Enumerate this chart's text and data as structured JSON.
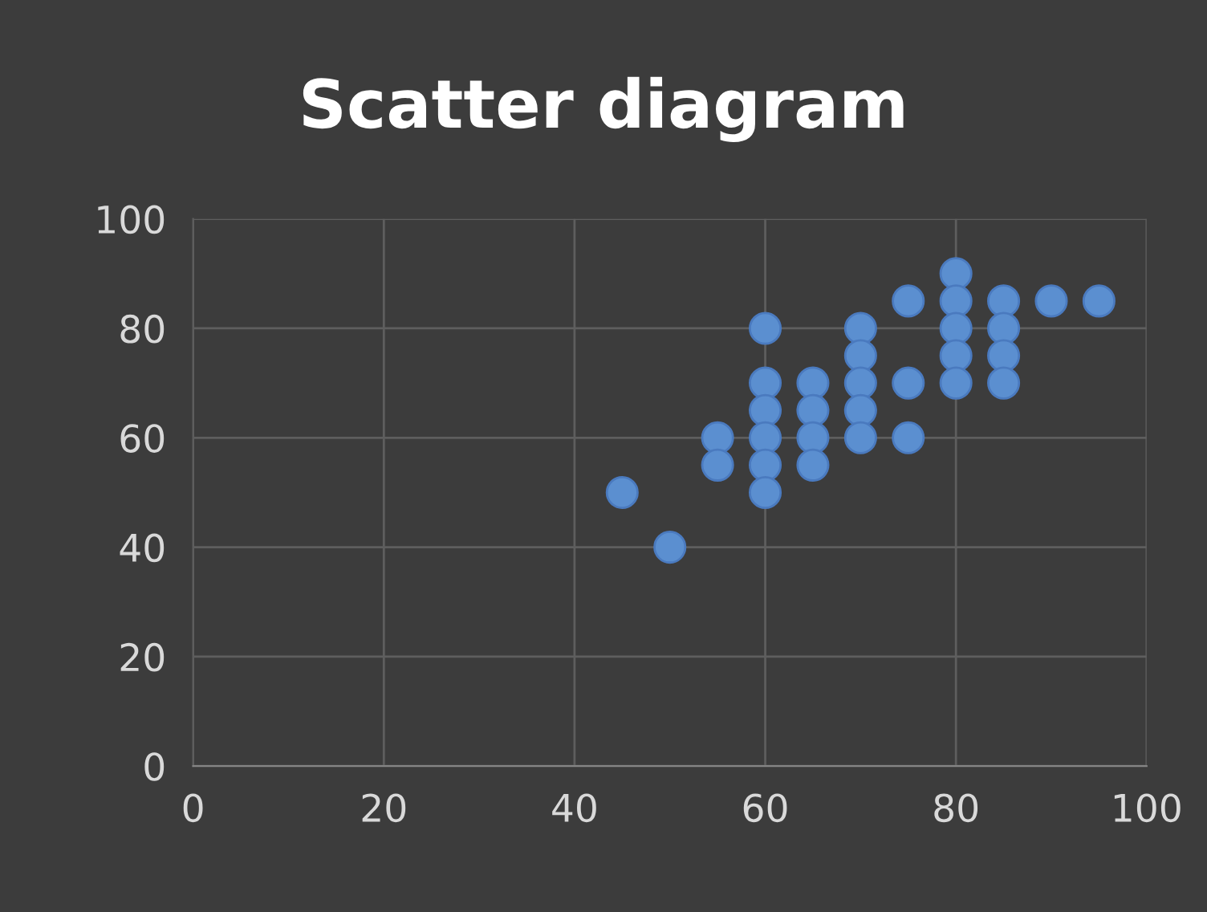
{
  "chart_data": {
    "type": "scatter",
    "title": "Scatter diagram",
    "series": [
      {
        "color": "#5b8fd0",
        "x": [
          45,
          50,
          55,
          55,
          60,
          60,
          60,
          60,
          60,
          60,
          65,
          65,
          65,
          65,
          70,
          70,
          70,
          70,
          70,
          75,
          75,
          75,
          80,
          80,
          80,
          80,
          80,
          85,
          85,
          85,
          85,
          90,
          95
        ],
        "values": [
          50,
          40,
          60,
          55,
          80,
          70,
          65,
          60,
          55,
          50,
          70,
          65,
          60,
          55,
          80,
          75,
          70,
          65,
          60,
          85,
          70,
          60,
          90,
          85,
          80,
          75,
          70,
          85,
          80,
          75,
          70,
          85,
          85
        ]
      }
    ],
    "xlim": [
      0,
      100
    ],
    "xticks": [
      0,
      20,
      40,
      60,
      80,
      100
    ],
    "ylim": [
      0,
      100
    ],
    "yticks": [
      0,
      20,
      40,
      60,
      80,
      100
    ],
    "grid": true,
    "marker": "circle"
  }
}
